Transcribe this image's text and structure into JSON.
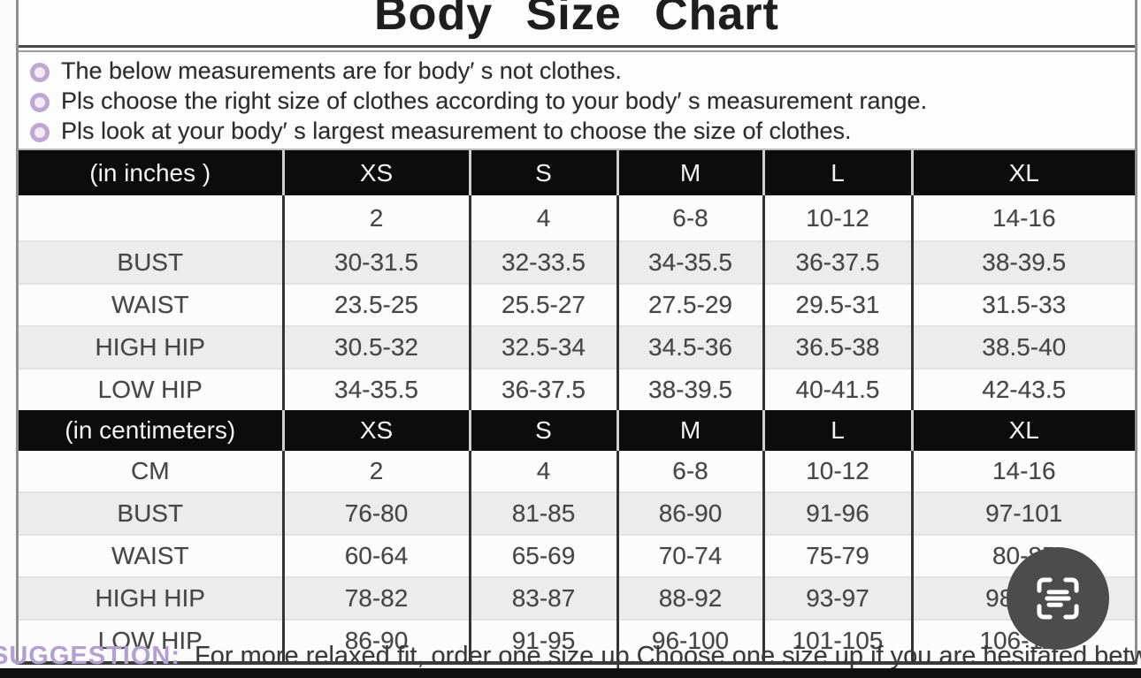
{
  "title": "Body Size Chart",
  "notes": [
    "The below measurements are for  body′ s not clothes.",
    "Pls choose the right size of clothes according to your body′ s  measurement range.",
    "Pls look  at your body′ s  largest measurement to choose the size of clothes."
  ],
  "inches_table": {
    "unit_label": "(in  inches )",
    "size_columns": [
      "XS",
      "S",
      "M",
      "L",
      "XL"
    ],
    "rows": [
      {
        "label": "",
        "values": [
          "2",
          "4",
          "6-8",
          "10-12",
          "14-16"
        ]
      },
      {
        "label": "BUST",
        "values": [
          "30-31.5",
          "32-33.5",
          "34-35.5",
          "36-37.5",
          "38-39.5"
        ]
      },
      {
        "label": "WAIST",
        "values": [
          "23.5-25",
          "25.5-27",
          "27.5-29",
          "29.5-31",
          "31.5-33"
        ]
      },
      {
        "label": "HIGH HIP",
        "values": [
          "30.5-32",
          "32.5-34",
          "34.5-36",
          "36.5-38",
          "38.5-40"
        ]
      },
      {
        "label": "LOW HIP",
        "values": [
          "34-35.5",
          "36-37.5",
          "38-39.5",
          "40-41.5",
          "42-43.5"
        ]
      }
    ]
  },
  "cm_table": {
    "unit_label": "(in centimeters)",
    "size_columns": [
      "XS",
      "S",
      "M",
      "L",
      "XL"
    ],
    "rows": [
      {
        "label": "CM",
        "values": [
          "2",
          "4",
          "6-8",
          "10-12",
          "14-16"
        ]
      },
      {
        "label": "BUST",
        "values": [
          "76-80",
          "81-85",
          "86-90",
          "91-96",
          "97-101"
        ]
      },
      {
        "label": "WAIST",
        "values": [
          "60-64",
          "65-69",
          "70-74",
          "75-79",
          "80-85"
        ]
      },
      {
        "label": "HIGH HIP",
        "values": [
          "78-82",
          "83-87",
          "88-92",
          "93-97",
          "98-102"
        ]
      },
      {
        "label": "LOW HIP",
        "values": [
          "86-90",
          "91-95",
          "96-100",
          "101-105",
          "106-110"
        ]
      }
    ]
  },
  "suggestion": {
    "label": "SUGGESTION:",
    "text": "For more relaxed fit, order one size up.Choose one size up if you are hesitated between two sizes"
  },
  "scan_button": {
    "icon": "scan-text-icon"
  },
  "colors": {
    "accent_purple": "#b7a2d1",
    "header_black": "#0c0c0c",
    "row_alt_gray": "#ececec",
    "scan_button_gray": "#4c4c4c",
    "bottom_bar_black": "#101010"
  }
}
